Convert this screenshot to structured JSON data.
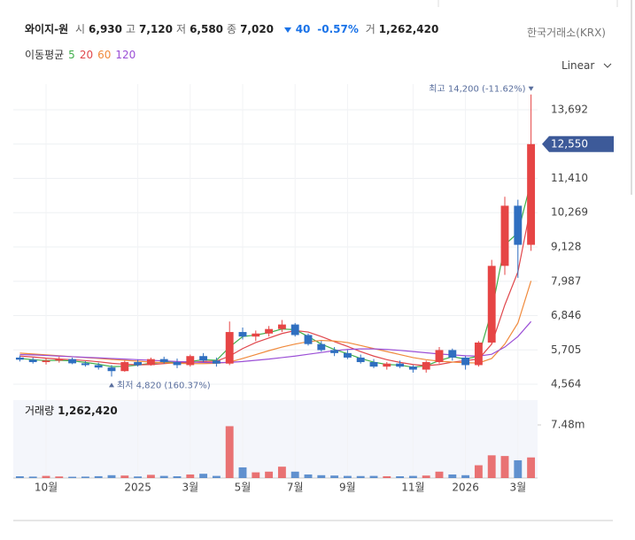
{
  "header": {
    "name": "와이지-원",
    "quotes": [
      {
        "label": "시",
        "value": "6,930"
      },
      {
        "label": "고",
        "value": "7,120"
      },
      {
        "label": "저",
        "value": "6,580"
      },
      {
        "label": "종",
        "value": "7,020"
      }
    ],
    "change": "40",
    "change_pct": "-0.57%",
    "volume_label": "거",
    "volume": "1,262,420",
    "exchange": "한국거래소(KRX)",
    "ma_label": "이동평균",
    "scale": "Linear"
  },
  "chart_data": [
    {
      "type": "candlestick",
      "current_label": "12,550",
      "annotations": {
        "max": "최고 14,200 (-11.62%)",
        "min": "최저 4,820 (160.37%)"
      },
      "categories": [
        null,
        null,
        "10월",
        null,
        null,
        null,
        null,
        null,
        null,
        "2025",
        null,
        null,
        null,
        "3월",
        null,
        null,
        null,
        "5월",
        null,
        null,
        null,
        "7월",
        null,
        null,
        null,
        "9월",
        null,
        null,
        null,
        null,
        "11월",
        null,
        null,
        null,
        "2026",
        null,
        null,
        null,
        "3월",
        null
      ],
      "open": [
        5450,
        5380,
        5300,
        5350,
        5400,
        5260,
        5200,
        5120,
        5000,
        5300,
        5200,
        5400,
        5300,
        5200,
        5500,
        5350,
        5250,
        6300,
        6150,
        6250,
        6400,
        6550,
        6200,
        5900,
        5700,
        5600,
        5450,
        5300,
        5150,
        5250,
        5150,
        5050,
        5300,
        5700,
        5450,
        5200,
        5950,
        8500,
        10500,
        9200
      ],
      "high": [
        5520,
        5450,
        5420,
        5480,
        5450,
        5330,
        5280,
        5200,
        5350,
        5380,
        5450,
        5480,
        5420,
        5550,
        5600,
        5450,
        6650,
        6450,
        6350,
        6500,
        6700,
        6600,
        6250,
        6000,
        5800,
        5700,
        5550,
        5400,
        5300,
        5350,
        5200,
        5350,
        5800,
        5750,
        5500,
        6000,
        8700,
        10800,
        10700,
        14200
      ],
      "low": [
        5320,
        5250,
        5220,
        5280,
        5230,
        5150,
        5050,
        4820,
        4980,
        5150,
        5180,
        5250,
        5100,
        5150,
        5300,
        5150,
        5200,
        6050,
        6000,
        6150,
        6300,
        6150,
        5850,
        5650,
        5500,
        5400,
        5250,
        5100,
        5050,
        5100,
        4950,
        4950,
        5250,
        5350,
        5050,
        5150,
        5900,
        8200,
        8100,
        9000
      ],
      "close": [
        5380,
        5300,
        5350,
        5400,
        5260,
        5200,
        5120,
        5000,
        5300,
        5200,
        5400,
        5300,
        5200,
        5500,
        5350,
        5250,
        6300,
        6150,
        6250,
        6400,
        6550,
        6200,
        5900,
        5700,
        5600,
        5450,
        5300,
        5150,
        5250,
        5150,
        5050,
        5300,
        5700,
        5450,
        5200,
        5950,
        8500,
        10500,
        9200,
        12550
      ],
      "series": [
        {
          "name": "5",
          "color": "#3fae4a",
          "values": [
            5420,
            5380,
            5350,
            5360,
            5340,
            5290,
            5230,
            5150,
            5160,
            5200,
            5260,
            5300,
            5290,
            5320,
            5380,
            5360,
            5800,
            6150,
            6200,
            6280,
            6400,
            6380,
            6150,
            5900,
            5720,
            5580,
            5420,
            5300,
            5220,
            5200,
            5130,
            5180,
            5350,
            5480,
            5400,
            5500,
            7000,
            9200,
            9600,
            11300
          ]
        },
        {
          "name": "20",
          "color": "#e0474c",
          "values": [
            5500,
            5470,
            5430,
            5400,
            5380,
            5350,
            5310,
            5260,
            5230,
            5210,
            5220,
            5250,
            5280,
            5290,
            5320,
            5330,
            5500,
            5750,
            5950,
            6100,
            6250,
            6350,
            6300,
            6150,
            5980,
            5820,
            5650,
            5500,
            5380,
            5290,
            5220,
            5180,
            5220,
            5300,
            5350,
            5400,
            5900,
            7200,
            8300,
            10500
          ]
        },
        {
          "name": "60",
          "color": "#f08a3c",
          "values": [
            5600,
            5570,
            5540,
            5510,
            5480,
            5450,
            5420,
            5390,
            5360,
            5330,
            5300,
            5280,
            5260,
            5250,
            5250,
            5260,
            5300,
            5420,
            5550,
            5680,
            5800,
            5900,
            5980,
            6020,
            6000,
            5950,
            5850,
            5750,
            5650,
            5550,
            5450,
            5380,
            5330,
            5300,
            5280,
            5270,
            5420,
            5900,
            6600,
            8000
          ]
        },
        {
          "name": "120",
          "color": "#9b4fd6",
          "values": [
            5550,
            5540,
            5520,
            5500,
            5480,
            5460,
            5440,
            5420,
            5400,
            5380,
            5360,
            5340,
            5320,
            5300,
            5290,
            5280,
            5290,
            5320,
            5360,
            5400,
            5450,
            5500,
            5560,
            5620,
            5680,
            5720,
            5740,
            5740,
            5720,
            5690,
            5650,
            5610,
            5570,
            5540,
            5510,
            5500,
            5560,
            5800,
            6150,
            6650
          ]
        }
      ],
      "ylim": [
        4094,
        14545
      ],
      "yticks": [
        {
          "value": 4564,
          "label": "4,564"
        },
        {
          "value": 5705,
          "label": "5,705"
        },
        {
          "value": 6846,
          "label": "6,846"
        },
        {
          "value": 7987,
          "label": "7,987"
        },
        {
          "value": 9128,
          "label": "9,128"
        },
        {
          "value": 10269,
          "label": "10,269"
        },
        {
          "value": 11410,
          "label": "11,410"
        },
        {
          "value": 12550,
          "label": "12,550"
        },
        {
          "value": 13692,
          "label": "13,692"
        }
      ],
      "grid": true,
      "up_color": "#e64545",
      "down_color": "#2f6fc0"
    },
    {
      "type": "bar",
      "title": "거래량",
      "subtitle": "1,262,420",
      "values": [
        250000,
        200000,
        300000,
        220000,
        180000,
        200000,
        260000,
        400000,
        350000,
        220000,
        450000,
        300000,
        250000,
        500000,
        600000,
        300000,
        7300000,
        1500000,
        800000,
        900000,
        1600000,
        900000,
        500000,
        400000,
        350000,
        300000,
        280000,
        300000,
        250000,
        250000,
        300000,
        350000,
        900000,
        500000,
        400000,
        1800000,
        3200000,
        3100000,
        2500000,
        2900000
      ],
      "ylim": [
        0,
        10970000
      ],
      "yticks": [
        {
          "value": 7480000,
          "label": "7.48m"
        }
      ]
    }
  ]
}
